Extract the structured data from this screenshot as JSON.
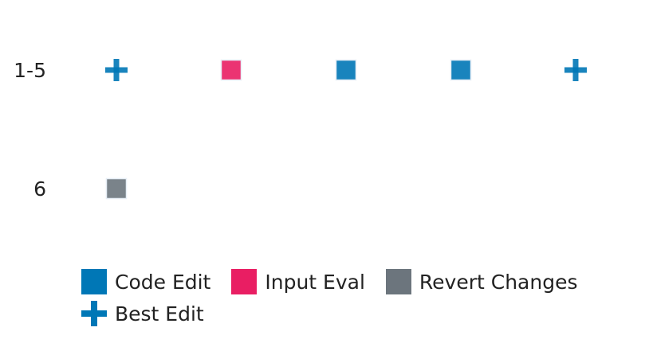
{
  "chart_data": {
    "type": "scatter",
    "title": "",
    "xlabel": "",
    "ylabel": "",
    "rows": [
      "1-5",
      "6"
    ],
    "columns": 5,
    "grid": false,
    "legend_placement": "bottom",
    "series": [
      {
        "name": "Code Edit",
        "marker": "square",
        "color": "#0077b6",
        "points": [
          {
            "row": "1-5",
            "step": 3
          },
          {
            "row": "1-5",
            "step": 4
          }
        ]
      },
      {
        "name": "Input Eval",
        "marker": "square",
        "color": "#e91e63",
        "points": [
          {
            "row": "1-5",
            "step": 2
          }
        ]
      },
      {
        "name": "Revert Changes",
        "marker": "square",
        "color": "#6c757d",
        "points": [
          {
            "row": "6",
            "step": 1
          }
        ]
      },
      {
        "name": "Best Edit",
        "marker": "plus",
        "color": "#0077b6",
        "points": [
          {
            "row": "1-5",
            "step": 1
          },
          {
            "row": "1-5",
            "step": 5
          }
        ]
      }
    ]
  },
  "legend": {
    "rows": [
      [
        {
          "label": "Code Edit",
          "marker": "square",
          "color": "#0077b6"
        },
        {
          "label": "Input Eval",
          "marker": "square",
          "color": "#e91e63"
        },
        {
          "label": "Revert Changes",
          "marker": "square",
          "color": "#6c757d"
        }
      ],
      [
        {
          "label": "Best Edit",
          "marker": "plus",
          "color": "#0077b6"
        }
      ]
    ]
  }
}
